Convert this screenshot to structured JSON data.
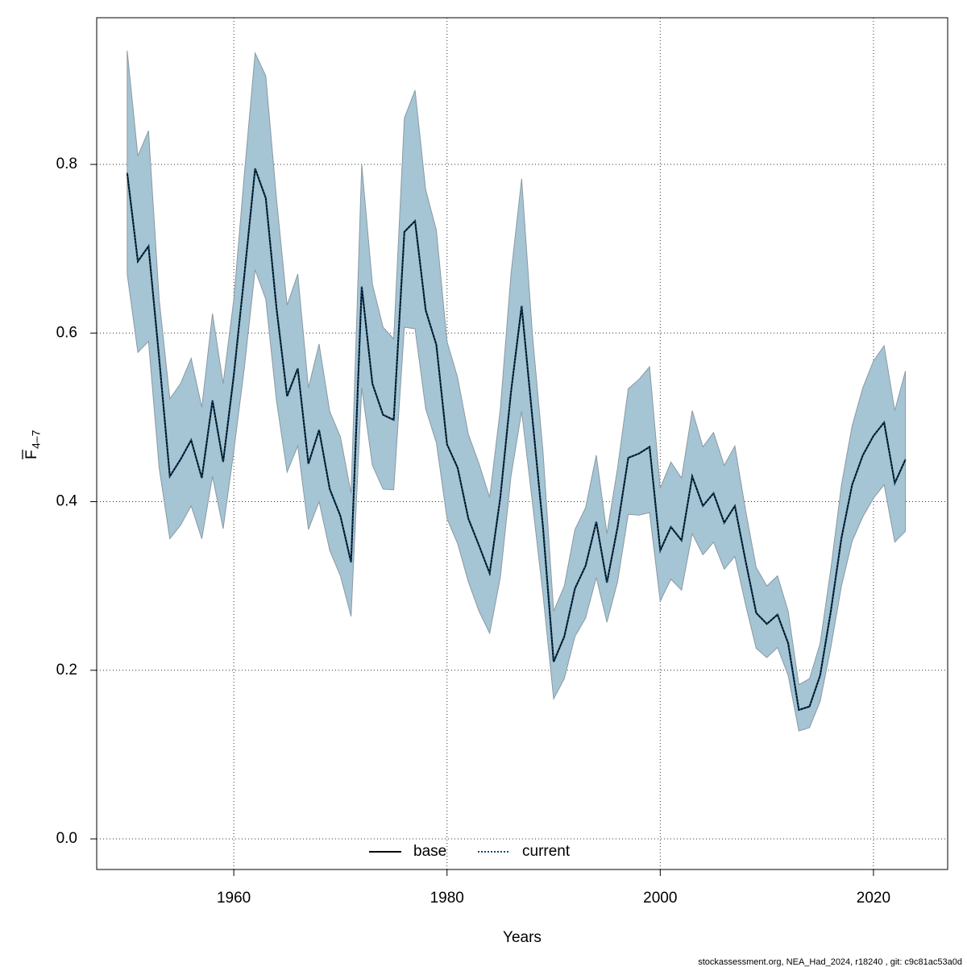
{
  "chart_data": {
    "type": "line",
    "xlabel": "Years",
    "ylabel": "F",
    "ylabel_subscript": "4–7",
    "footer": "stockassessment.org, NEA_Had_2024, r18240 , git: c9c81ac53a0d",
    "x": [
      1950,
      1951,
      1952,
      1953,
      1954,
      1955,
      1956,
      1957,
      1958,
      1959,
      1960,
      1961,
      1962,
      1963,
      1964,
      1965,
      1966,
      1967,
      1968,
      1969,
      1970,
      1971,
      1972,
      1973,
      1974,
      1975,
      1976,
      1977,
      1978,
      1979,
      1980,
      1981,
      1982,
      1983,
      1984,
      1985,
      1986,
      1987,
      1988,
      1989,
      1990,
      1991,
      1992,
      1993,
      1994,
      1995,
      1996,
      1997,
      1998,
      1999,
      2000,
      2001,
      2002,
      2003,
      2004,
      2005,
      2006,
      2007,
      2008,
      2009,
      2010,
      2011,
      2012,
      2013,
      2014,
      2015,
      2016,
      2017,
      2018,
      2019,
      2020,
      2021,
      2022,
      2023
    ],
    "band": {
      "color": "#a5c4d4",
      "lower": [
        0.67,
        0.577,
        0.59,
        0.44,
        0.356,
        0.372,
        0.395,
        0.356,
        0.43,
        0.368,
        0.46,
        0.56,
        0.675,
        0.64,
        0.52,
        0.435,
        0.466,
        0.367,
        0.4,
        0.342,
        0.312,
        0.264,
        0.535,
        0.443,
        0.415,
        0.414,
        0.607,
        0.605,
        0.51,
        0.47,
        0.38,
        0.35,
        0.305,
        0.27,
        0.244,
        0.31,
        0.43,
        0.507,
        0.4,
        0.29,
        0.166,
        0.19,
        0.24,
        0.262,
        0.31,
        0.257,
        0.305,
        0.385,
        0.384,
        0.387,
        0.282,
        0.308,
        0.295,
        0.362,
        0.337,
        0.352,
        0.32,
        0.335,
        0.278,
        0.226,
        0.215,
        0.227,
        0.194,
        0.128,
        0.132,
        0.163,
        0.227,
        0.3,
        0.353,
        0.382,
        0.404,
        0.42,
        0.352,
        0.365
      ],
      "upper": [
        0.935,
        0.81,
        0.84,
        0.64,
        0.522,
        0.54,
        0.57,
        0.512,
        0.623,
        0.54,
        0.64,
        0.79,
        0.932,
        0.905,
        0.76,
        0.633,
        0.67,
        0.535,
        0.587,
        0.507,
        0.477,
        0.41,
        0.8,
        0.658,
        0.607,
        0.593,
        0.855,
        0.888,
        0.77,
        0.722,
        0.59,
        0.547,
        0.48,
        0.445,
        0.405,
        0.51,
        0.67,
        0.783,
        0.6,
        0.46,
        0.27,
        0.3,
        0.367,
        0.393,
        0.455,
        0.362,
        0.44,
        0.534,
        0.545,
        0.56,
        0.416,
        0.447,
        0.428,
        0.508,
        0.465,
        0.482,
        0.443,
        0.466,
        0.39,
        0.322,
        0.3,
        0.312,
        0.27,
        0.183,
        0.19,
        0.232,
        0.32,
        0.42,
        0.49,
        0.535,
        0.567,
        0.585,
        0.508,
        0.555
      ]
    },
    "series": [
      {
        "name": "base",
        "color": "#000000",
        "dash": "solid",
        "values": [
          0.79,
          0.685,
          0.703,
          0.57,
          0.43,
          0.45,
          0.473,
          0.428,
          0.52,
          0.447,
          0.55,
          0.67,
          0.795,
          0.76,
          0.63,
          0.525,
          0.558,
          0.445,
          0.485,
          0.415,
          0.383,
          0.328,
          0.655,
          0.54,
          0.503,
          0.497,
          0.72,
          0.733,
          0.627,
          0.586,
          0.468,
          0.44,
          0.38,
          0.348,
          0.315,
          0.405,
          0.53,
          0.632,
          0.5,
          0.37,
          0.21,
          0.24,
          0.297,
          0.324,
          0.376,
          0.304,
          0.37,
          0.452,
          0.457,
          0.465,
          0.342,
          0.37,
          0.354,
          0.43,
          0.395,
          0.41,
          0.375,
          0.395,
          0.33,
          0.268,
          0.255,
          0.266,
          0.232,
          0.153,
          0.157,
          0.194,
          0.27,
          0.357,
          0.42,
          0.455,
          0.478,
          0.494,
          0.422,
          0.45
        ]
      },
      {
        "name": "current",
        "color": "#0b4a73",
        "dash": "dotted",
        "values": [
          0.79,
          0.685,
          0.703,
          0.57,
          0.43,
          0.45,
          0.473,
          0.428,
          0.52,
          0.447,
          0.55,
          0.67,
          0.795,
          0.76,
          0.63,
          0.525,
          0.558,
          0.445,
          0.485,
          0.415,
          0.383,
          0.328,
          0.655,
          0.54,
          0.503,
          0.497,
          0.72,
          0.733,
          0.627,
          0.586,
          0.468,
          0.44,
          0.38,
          0.348,
          0.315,
          0.405,
          0.53,
          0.632,
          0.5,
          0.37,
          0.21,
          0.24,
          0.297,
          0.324,
          0.376,
          0.304,
          0.37,
          0.452,
          0.457,
          0.465,
          0.342,
          0.37,
          0.354,
          0.43,
          0.395,
          0.41,
          0.375,
          0.395,
          0.33,
          0.268,
          0.255,
          0.266,
          0.232,
          0.153,
          0.157,
          0.194,
          0.27,
          0.357,
          0.42,
          0.455,
          0.478,
          0.494,
          0.422,
          0.45
        ]
      }
    ],
    "xlim": [
      1947.14,
      2026.96
    ],
    "ylim": [
      -0.0363,
      0.974
    ],
    "xticks": [
      1960,
      1980,
      2000,
      2020
    ],
    "yticks": [
      {
        "value": 0,
        "label": "0.0"
      },
      0.2,
      0.4,
      0.6,
      0.8
    ],
    "grid": true,
    "legend": "bottom"
  }
}
